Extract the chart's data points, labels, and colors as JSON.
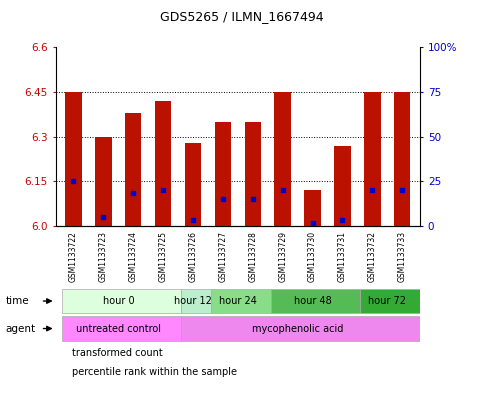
{
  "title": "GDS5265 / ILMN_1667494",
  "samples": [
    "GSM1133722",
    "GSM1133723",
    "GSM1133724",
    "GSM1133725",
    "GSM1133726",
    "GSM1133727",
    "GSM1133728",
    "GSM1133729",
    "GSM1133730",
    "GSM1133731",
    "GSM1133732",
    "GSM1133733"
  ],
  "bar_values": [
    6.45,
    6.3,
    6.38,
    6.42,
    6.28,
    6.35,
    6.35,
    6.45,
    6.12,
    6.27,
    6.45,
    6.45
  ],
  "blue_values": [
    6.15,
    6.03,
    6.11,
    6.12,
    6.02,
    6.09,
    6.09,
    6.12,
    6.01,
    6.02,
    6.12,
    6.12
  ],
  "bar_bottom": 6.0,
  "ylim": [
    6.0,
    6.6
  ],
  "yticks_left": [
    6.0,
    6.15,
    6.3,
    6.45,
    6.6
  ],
  "yticks_right_pct": [
    0,
    25,
    50,
    75,
    100
  ],
  "bar_color": "#bb1100",
  "blue_color": "#0000cc",
  "bg_color": "#ffffff",
  "plot_bg": "#ffffff",
  "time_groups": [
    {
      "label": "hour 0",
      "cols": [
        0,
        1,
        2,
        3
      ],
      "bg": "#ddffdd"
    },
    {
      "label": "hour 12",
      "cols": [
        4
      ],
      "bg": "#bbeecc"
    },
    {
      "label": "hour 24",
      "cols": [
        5,
        6
      ],
      "bg": "#88dd88"
    },
    {
      "label": "hour 48",
      "cols": [
        7,
        8,
        9
      ],
      "bg": "#55bb55"
    },
    {
      "label": "hour 72",
      "cols": [
        10,
        11
      ],
      "bg": "#33aa33"
    }
  ],
  "agent_groups": [
    {
      "label": "untreated control",
      "cols": [
        0,
        1,
        2,
        3
      ],
      "bg": "#ff88ff"
    },
    {
      "label": "mycophenolic acid",
      "cols": [
        4,
        5,
        6,
        7,
        8,
        9,
        10,
        11
      ],
      "bg": "#ee88ee"
    }
  ],
  "legend_items": [
    {
      "label": "transformed count",
      "color": "#bb1100"
    },
    {
      "label": "percentile rank within the sample",
      "color": "#0000cc"
    }
  ],
  "sample_bg": "#cccccc",
  "sample_sep_color": "#ffffff"
}
